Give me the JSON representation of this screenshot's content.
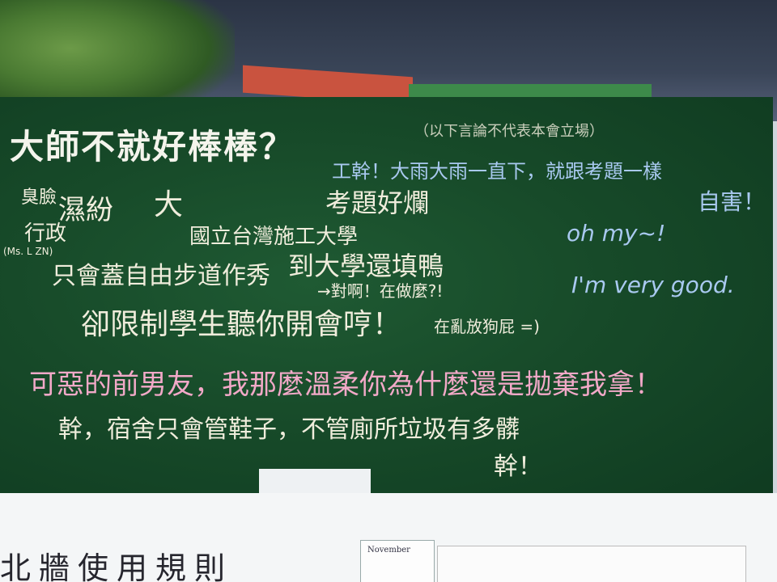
{
  "photo": {
    "colors": {
      "board": "#1a4f2d",
      "chalk_white": "#f0eddc",
      "chalk_blue": "#a9c9f0",
      "chalk_pink": "#f2a9c8",
      "tent": "#2f384a"
    },
    "board": {
      "title": "大師不就好棒棒？",
      "disclaimer": "（以下言論不代表本會立場）",
      "line_blue_1": "工幹！大雨大雨一直下，就跟考題一樣",
      "self_harm": "自害！",
      "oh_my": "oh my~!",
      "very_good": "I'm very good.",
      "shame": "臭臉",
      "admin": "行政",
      "ms_label": "(Ms. L ZN)",
      "wall": "濕紛",
      "big": "大",
      "exam": "考題好爛",
      "ntut": "國立台灣施工大學",
      "fill_duck": "到大學還填鴨",
      "walkway": "只會蓋自由步道作秀",
      "right": "→對啊！在做麼?!",
      "limit": "卻限制學生聽你開會哼！",
      "fart": "在亂放狗屁 =)",
      "ex_boyfriend": "可惡的前男友，我那麼溫柔你為什麼還是拋棄我拿！",
      "dorm": "幹，宿舍只會管鞋子，不管廁所垃圾有多髒",
      "fuck": "幹！"
    },
    "bottom": {
      "rules": "北牆使用規則",
      "notice_label": "November"
    }
  }
}
